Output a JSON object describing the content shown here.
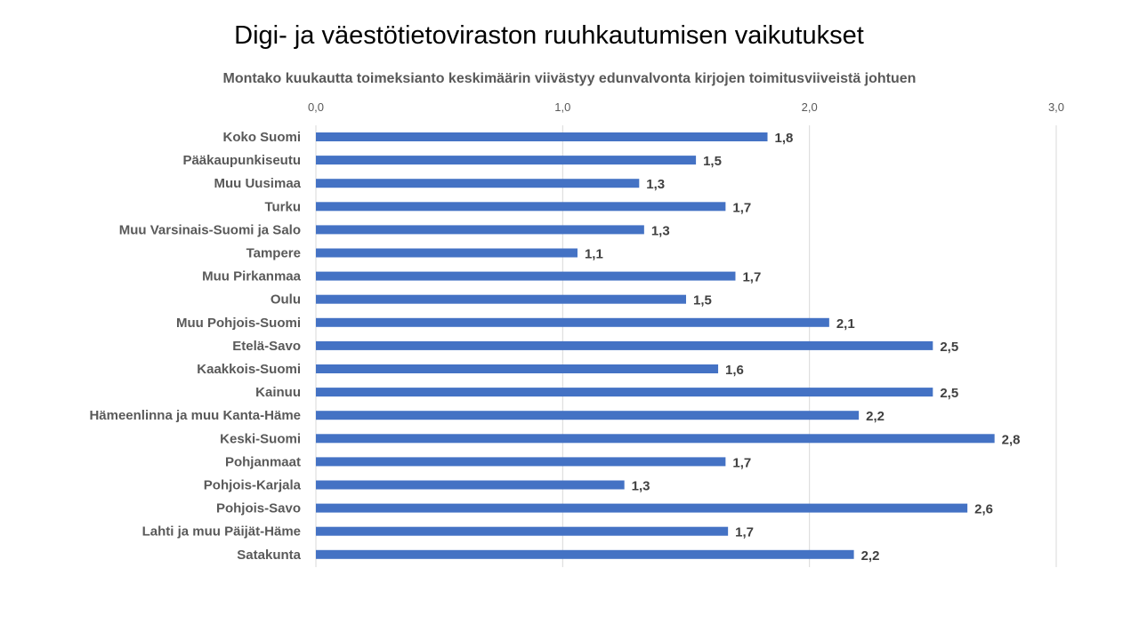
{
  "chart_data": {
    "type": "bar",
    "orientation": "horizontal",
    "title": "Digi- ja väestötietoviraston ruuhkautumisen vaikutukset",
    "subtitle": "Montako kuukautta toimeksianto keskimäärin viivästyy edunvalvonta kirjojen toimitusviiveistä johtuen",
    "xlim": [
      0,
      3
    ],
    "xticks": [
      "0,0",
      "1,0",
      "2,0",
      "3,0"
    ],
    "grid": true,
    "bar_color": "#4472C4",
    "categories": [
      "Koko Suomi",
      "Pääkaupunkiseutu",
      "Muu Uusimaa",
      "Turku",
      "Muu Varsinais-Suomi ja Salo",
      "Tampere",
      "Muu Pirkanmaa",
      "Oulu",
      "Muu Pohjois-Suomi",
      "Etelä-Savo",
      "Kaakkois-Suomi",
      "Kainuu",
      "Hämeenlinna ja muu Kanta-Häme",
      "Keski-Suomi",
      "Pohjanmaat",
      "Pohjois-Karjala",
      "Pohjois-Savo",
      "Lahti ja muu Päijät-Häme",
      "Satakunta"
    ],
    "values": [
      1.83,
      1.54,
      1.31,
      1.66,
      1.33,
      1.06,
      1.7,
      1.5,
      2.08,
      2.5,
      1.63,
      2.5,
      2.2,
      2.75,
      1.66,
      1.25,
      2.64,
      1.67,
      2.18
    ],
    "labels": [
      "1,8",
      "1,5",
      "1,3",
      "1,7",
      "1,3",
      "1,1",
      "1,7",
      "1,5",
      "2,1",
      "2,5",
      "1,6",
      "2,5",
      "2,2",
      "2,8",
      "1,7",
      "1,3",
      "2,6",
      "1,7",
      "2,2"
    ]
  }
}
